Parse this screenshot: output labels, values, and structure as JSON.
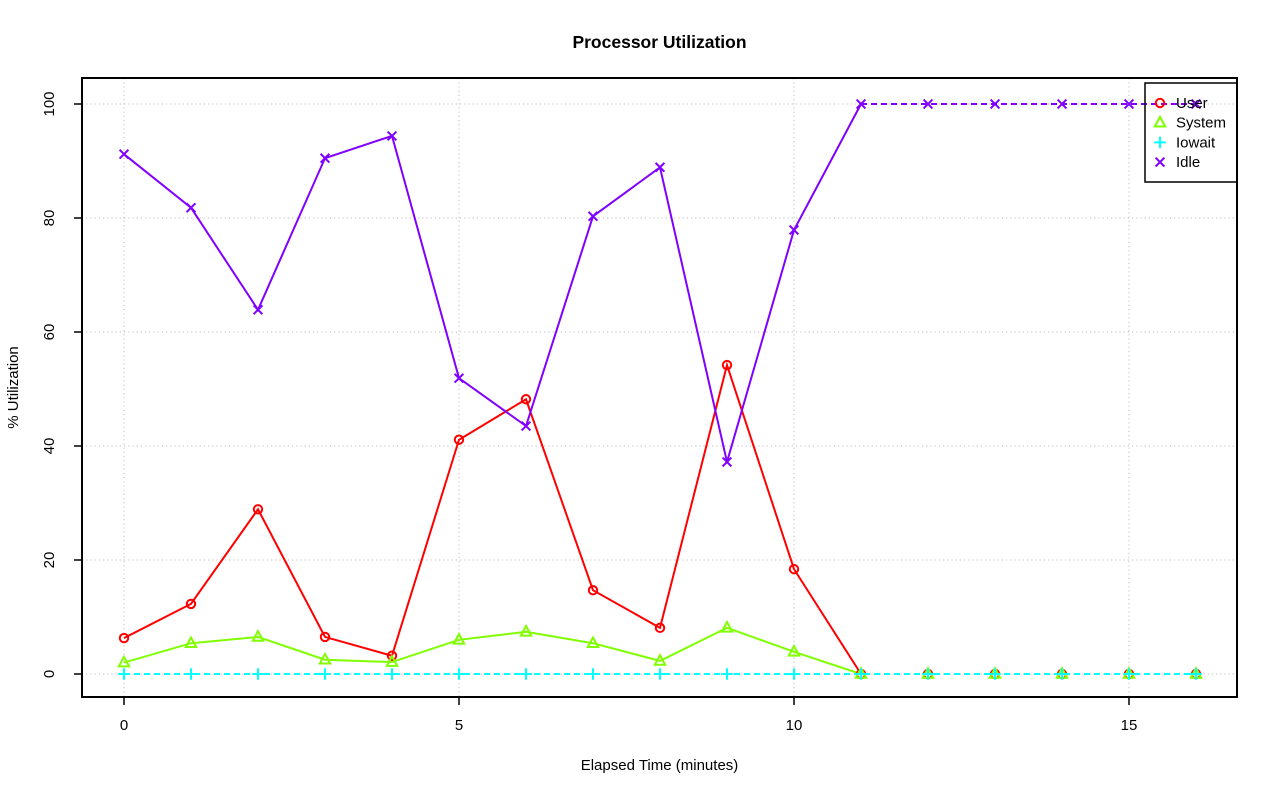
{
  "figure": {
    "title": "Processor Utilization",
    "background": "#ffffff",
    "axis_color": "#000000",
    "grid_color": "#bebebe"
  },
  "chart_data": {
    "type": "line",
    "title": "Processor Utilization",
    "xlabel": "Elapsed Time (minutes)",
    "ylabel": "% Utilization",
    "xlim": [
      0,
      16
    ],
    "ylim": [
      0,
      100
    ],
    "x_ticks": [
      0,
      5,
      10,
      15
    ],
    "y_ticks": [
      0,
      20,
      40,
      60,
      80,
      100
    ],
    "grid": "dotted",
    "x": [
      0,
      1,
      2,
      3,
      4,
      5,
      6,
      7,
      8,
      9,
      10,
      11,
      12,
      13,
      14,
      15,
      16
    ],
    "series": [
      {
        "name": "User",
        "color": "#FF0000",
        "marker": "circle",
        "values": [
          6.3,
          12.3,
          28.9,
          6.5,
          3.2,
          41.1,
          48.2,
          14.7,
          8.1,
          54.2,
          18.4,
          0,
          0,
          0,
          0,
          0,
          0
        ],
        "segments": [
          {
            "from": 0,
            "to": 11,
            "dash": false
          }
        ]
      },
      {
        "name": "System",
        "color": "#80FF00",
        "marker": "triangle",
        "values": [
          2.0,
          5.4,
          6.5,
          2.5,
          2.1,
          6.0,
          7.4,
          5.4,
          2.3,
          8.1,
          3.9,
          0,
          0,
          0,
          0,
          0,
          0
        ],
        "segments": [
          {
            "from": 0,
            "to": 11,
            "dash": false
          }
        ]
      },
      {
        "name": "Iowait",
        "color": "#00FFFF",
        "marker": "plus",
        "values": [
          0,
          0,
          0,
          0,
          0,
          0,
          0,
          0,
          0,
          0,
          0,
          0,
          0,
          0,
          0,
          0,
          0
        ],
        "segments": [
          {
            "from": 0,
            "to": 16,
            "dash": true
          }
        ]
      },
      {
        "name": "Idle",
        "color": "#8000FF",
        "marker": "x",
        "values": [
          91.2,
          81.8,
          63.9,
          90.5,
          94.4,
          51.9,
          43.5,
          80.3,
          88.9,
          37.2,
          77.9,
          100,
          100,
          100,
          100,
          100,
          100
        ],
        "segments": [
          {
            "from": 0,
            "to": 11,
            "dash": false
          },
          {
            "from": 11,
            "to": 16,
            "dash": true
          }
        ]
      }
    ],
    "legend": {
      "position": "topright",
      "labels": [
        "User",
        "System",
        "Iowait",
        "Idle"
      ]
    }
  }
}
